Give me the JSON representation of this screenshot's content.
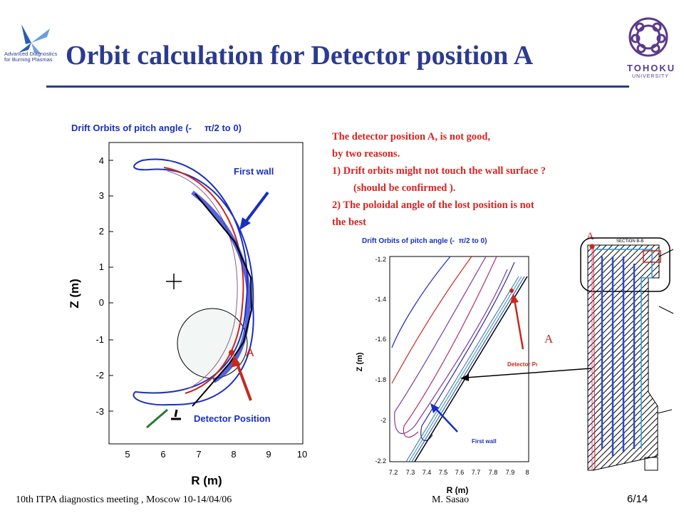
{
  "slide": {
    "title": "Orbit calculation for Detector position A",
    "left_logo_text": [
      "Advanced Diagnostics",
      "for Burning Plasmas"
    ],
    "right_logo": {
      "name": "TOHOKU",
      "sub": "UNIVERSITY"
    }
  },
  "notes": {
    "lines": [
      "The detector position A, is  not good,",
      "by two reasons.",
      "1)  Drift orbits might not touch the wall surface ?",
      "(should be confirmed ).",
      "2)   The poloidal angle of the lost position is not",
      "the best"
    ]
  },
  "figure_left": {
    "title_part1": "Drift Orbits of pitch angle (-",
    "title_part2": "π/2 to 0)",
    "xlabel": "R (m)",
    "ylabel": "Z (m)",
    "xticks": [
      "5",
      "6",
      "7",
      "8",
      "9",
      "10"
    ],
    "yticks": [
      "4",
      "3",
      "2",
      "1",
      "0",
      "-1",
      "-2",
      "-3"
    ],
    "label_first_wall": "First wall",
    "label_detector": "Detector Position",
    "marker_label": "A"
  },
  "figure_middle": {
    "title_part1": "Drift Orbits of pitch angle (-",
    "title_part2": "π/2 to 0)",
    "xlabel": "R (m)",
    "ylabel": "Z (m)",
    "xticks": [
      "7.2",
      "7.3",
      "7.4",
      "7.5",
      "7.6",
      "7.7",
      "7.8",
      "7.9",
      "8"
    ],
    "yticks": [
      "-1.2",
      "-1.4",
      "-1.6",
      "-1.8",
      "-2",
      "-2.2"
    ],
    "label_first_wall": "First wall",
    "label_detector": "Detector Position",
    "marker_label": "A"
  },
  "figure_right": {
    "marker_label": "A",
    "section_label": "SECTION B-B"
  },
  "footer": {
    "meeting": "10th  ITPA diagnostics meeting , Moscow 10-14/04/06",
    "author": "M. Sasao",
    "page": "6/14"
  },
  "colors": {
    "title": "#2b3b8f",
    "notes": "#d9231f",
    "orbit_blue": "#1a2fbf",
    "arrow_red": "#c8281e"
  }
}
